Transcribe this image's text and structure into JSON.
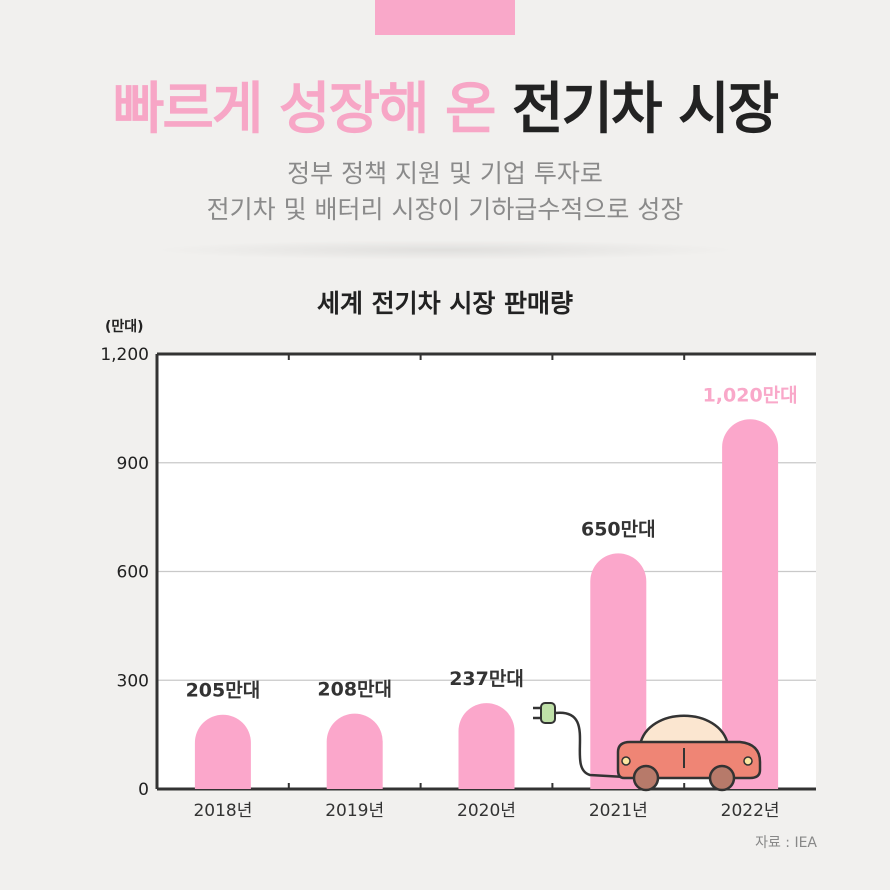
{
  "header": {
    "title_pink": "빠르게 성장해 온",
    "title_dark": "전기차 시장",
    "subtitle_line1": "정부 정책 지원 및 기업 투자로",
    "subtitle_line2": "전기차 및 배터리 시장이 기하급수적으로 성장"
  },
  "source": "자료 : IEA",
  "colors": {
    "accent_pink": "#f7a6c6",
    "bar_pink": "#fba7cb",
    "highlight_label": "#f9a8c9",
    "text_dark": "#222222",
    "car_body": "#ef8575",
    "car_roof": "#fbe6d0"
  },
  "icons": [
    "ev-plug-icon",
    "electric-car-icon"
  ],
  "chart_data": {
    "type": "bar",
    "title": "세계 전기차 시장 판매량",
    "unit_label": "(만대)",
    "categories": [
      "2018년",
      "2019년",
      "2020년",
      "2021년",
      "2022년"
    ],
    "values": [
      205,
      208,
      237,
      650,
      1020
    ],
    "data_labels": [
      "205만대",
      "208만대",
      "237만대",
      "650만대",
      "1,020만대"
    ],
    "highlight_index": 4,
    "y_ticks": [
      "0",
      "300",
      "600",
      "900",
      "1,200"
    ],
    "y_tick_values": [
      0,
      300,
      600,
      900,
      1200
    ],
    "ylim": [
      0,
      1200
    ],
    "grid": true
  }
}
